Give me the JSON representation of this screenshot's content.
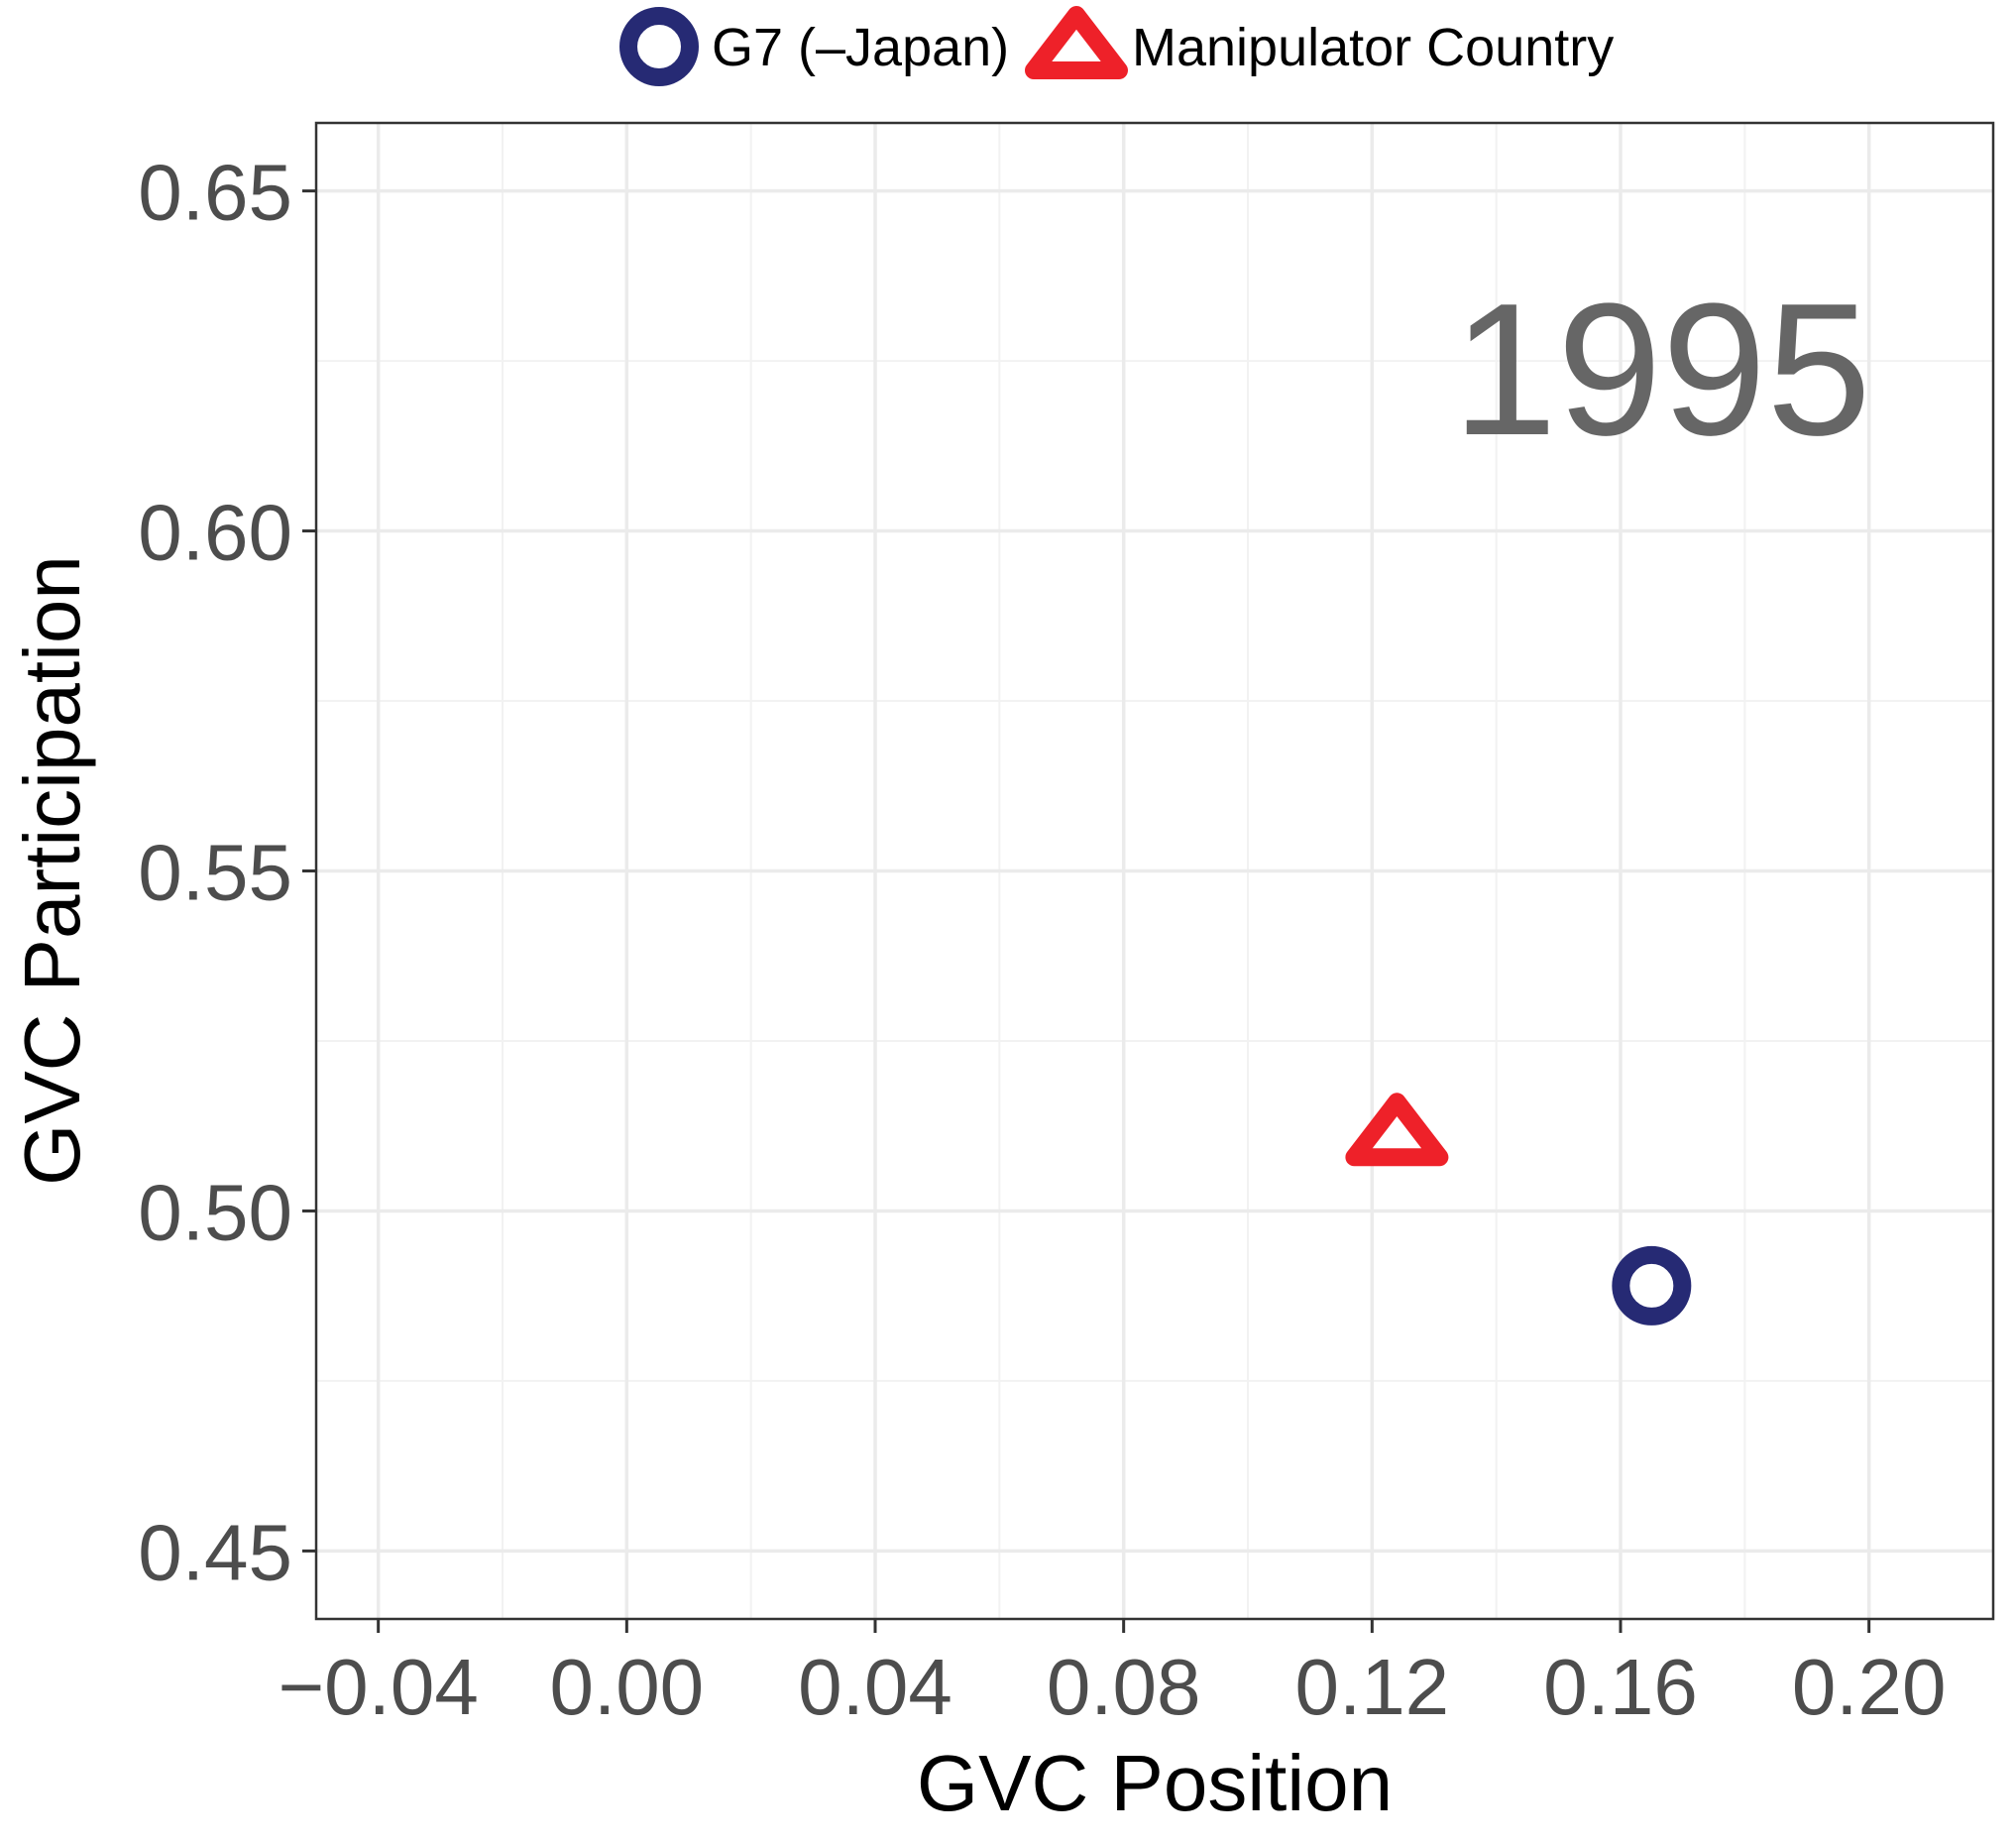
{
  "chart_data": {
    "type": "scatter",
    "xlabel": "GVC Position",
    "ylabel": "GVC Participation",
    "xlim": [
      -0.05,
      0.22
    ],
    "ylim": [
      0.44,
      0.66
    ],
    "x_ticks": [
      -0.04,
      0.0,
      0.04,
      0.08,
      0.12,
      0.16,
      0.2
    ],
    "x_tick_labels": [
      "−0.04",
      "0.00",
      "0.04",
      "0.08",
      "0.12",
      "0.16",
      "0.20"
    ],
    "y_ticks": [
      0.45,
      0.5,
      0.55,
      0.6,
      0.65
    ],
    "y_tick_labels": [
      "0.45",
      "0.50",
      "0.55",
      "0.60",
      "0.65"
    ],
    "grid": true,
    "legend_position": "top",
    "annotation": "1995",
    "series": [
      {
        "name": "G7 (–Japan)",
        "marker": "circle-open",
        "color": "#262a74",
        "points": [
          {
            "x": 0.165,
            "y": 0.489
          }
        ]
      },
      {
        "name": "Manipulator Country",
        "marker": "triangle-open",
        "color": "#ee2129",
        "points": [
          {
            "x": 0.124,
            "y": 0.511
          }
        ]
      }
    ]
  }
}
